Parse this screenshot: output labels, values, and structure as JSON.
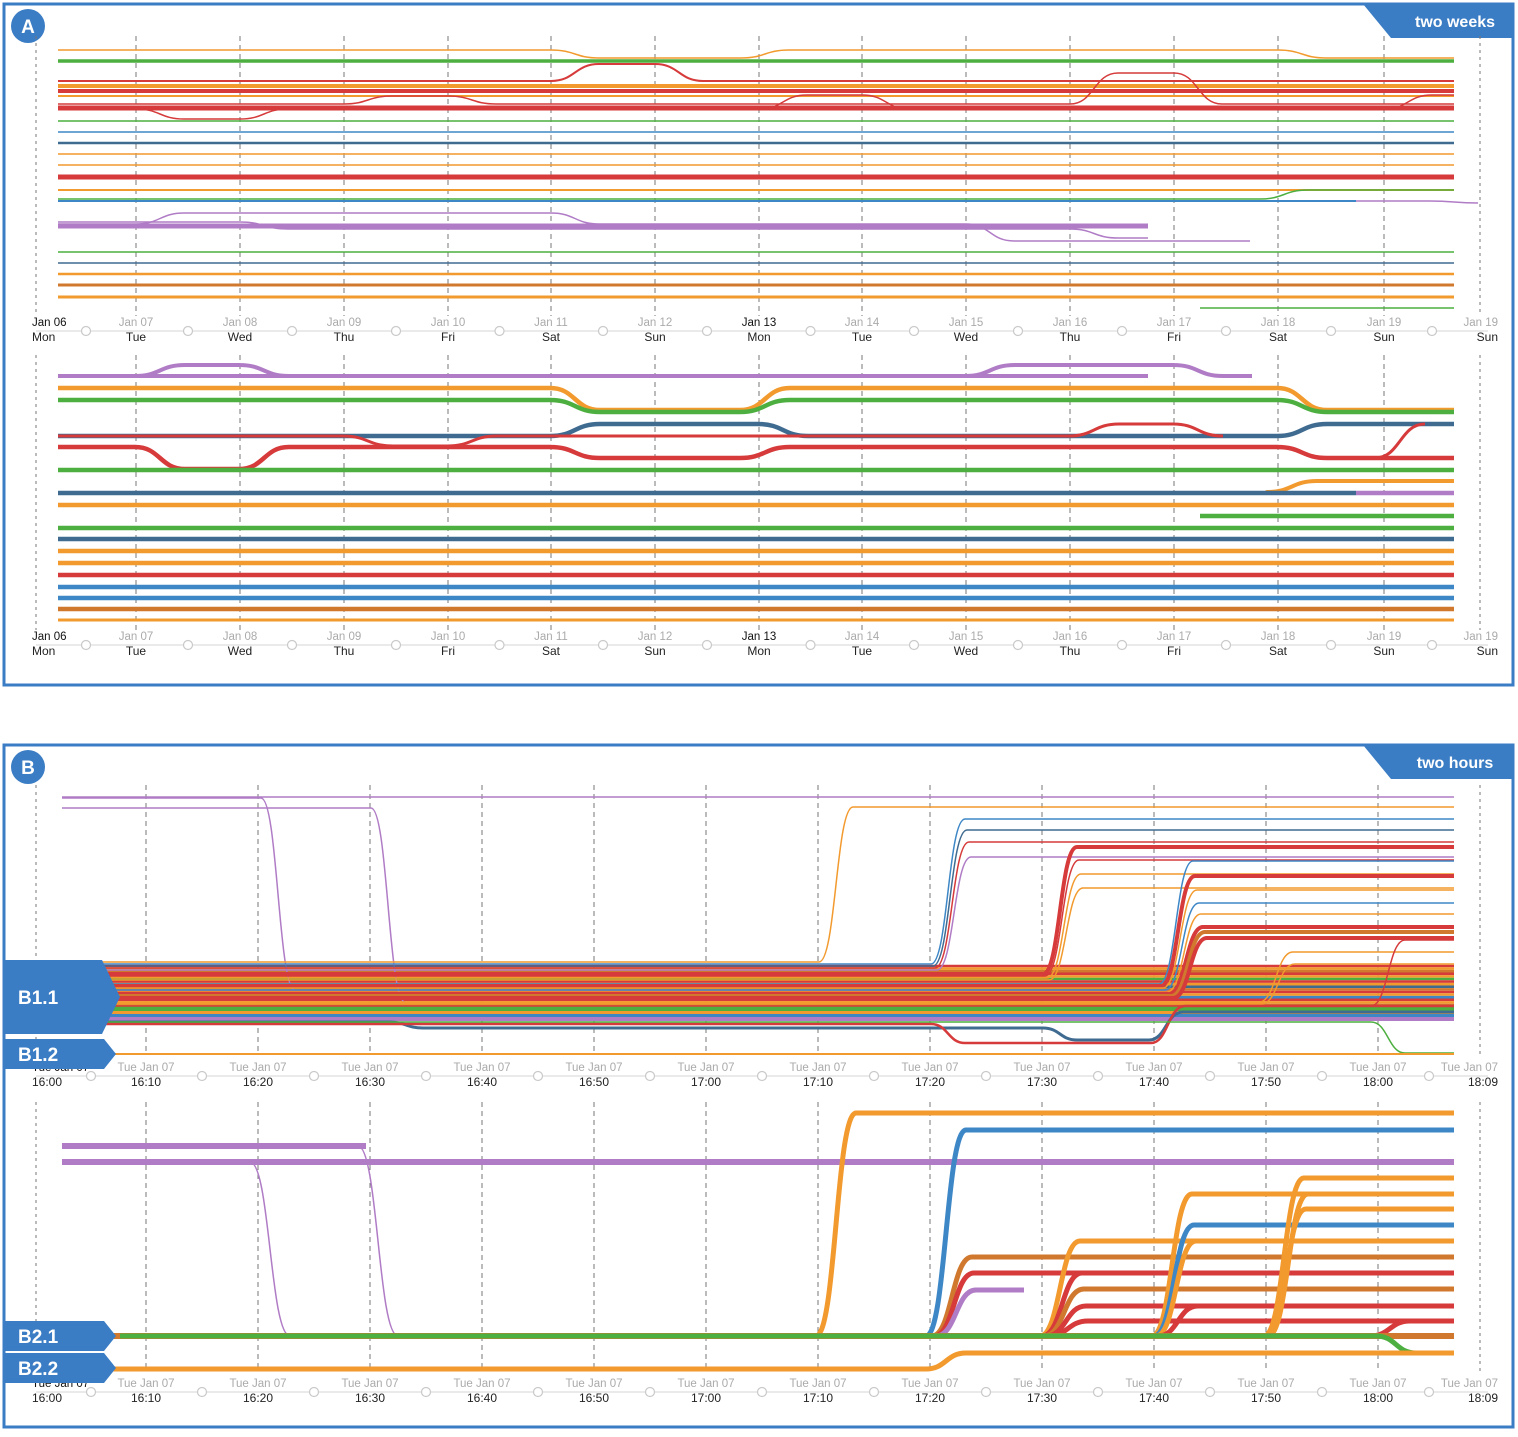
{
  "panels": [
    {
      "id": "A",
      "badge": "A",
      "tag": "two weeks",
      "tick_top": [
        "Jan 06",
        "Jan 07",
        "Jan 08",
        "Jan 09",
        "Jan 10",
        "Jan 11",
        "Jan 12",
        "Jan 13",
        "Jan 14",
        "Jan 15",
        "Jan 16",
        "Jan 17",
        "Jan 18",
        "Jan 19",
        "Jan 19"
      ],
      "tick_bottom": [
        "Mon",
        "Tue",
        "Wed",
        "Thu",
        "Fri",
        "Sat",
        "Sun",
        "Mon",
        "Tue",
        "Wed",
        "Thu",
        "Fri",
        "Sat",
        "Sun",
        "Sun"
      ],
      "tick_emphasis": [
        0,
        7
      ],
      "labels": []
    },
    {
      "id": "B",
      "badge": "B",
      "tag": "two  hours",
      "tick_top": [
        "Tue Jan 07",
        "Tue Jan 07",
        "Tue Jan 07",
        "Tue Jan 07",
        "Tue Jan 07",
        "Tue Jan 07",
        "Tue Jan 07",
        "Tue Jan 07",
        "Tue Jan 07",
        "Tue Jan 07",
        "Tue Jan 07",
        "Tue Jan 07",
        "Tue Jan 07",
        "Tue Jan 07"
      ],
      "tick_bottom": [
        "16:00",
        "16:10",
        "16:20",
        "16:30",
        "16:40",
        "16:50",
        "17:00",
        "17:10",
        "17:20",
        "17:30",
        "17:40",
        "17:50",
        "18:00",
        "18:09"
      ],
      "tick_emphasis": [
        0
      ],
      "labels": [
        "B1.1",
        "B1.2",
        "B2.1",
        "B2.2"
      ]
    }
  ],
  "colors": {
    "frame": "#3b7dc4",
    "orange": "#f29a2e",
    "green": "#4caf3f",
    "red": "#d63a3a",
    "purple": "#b07cc6",
    "blue": "#3d87c7",
    "steel": "#3f6b91",
    "brown": "#d0782e"
  },
  "chart_data": [
    {
      "panel": "A (top)",
      "type": "line",
      "x_unit": "day",
      "x_range": [
        "Jan 06",
        "Jan 19"
      ],
      "series_count": 26
    },
    {
      "panel": "A (bottom)",
      "type": "line",
      "x_unit": "day",
      "x_range": [
        "Jan 06",
        "Jan 19"
      ],
      "series_count": 21
    },
    {
      "panel": "B (top)",
      "type": "line",
      "x_unit": "time",
      "x_range": [
        "16:00",
        "18:09"
      ],
      "series_count": 40
    },
    {
      "panel": "B (bottom)",
      "type": "line",
      "x_unit": "time",
      "x_range": [
        "16:00",
        "18:09"
      ],
      "series_count": 24
    }
  ]
}
